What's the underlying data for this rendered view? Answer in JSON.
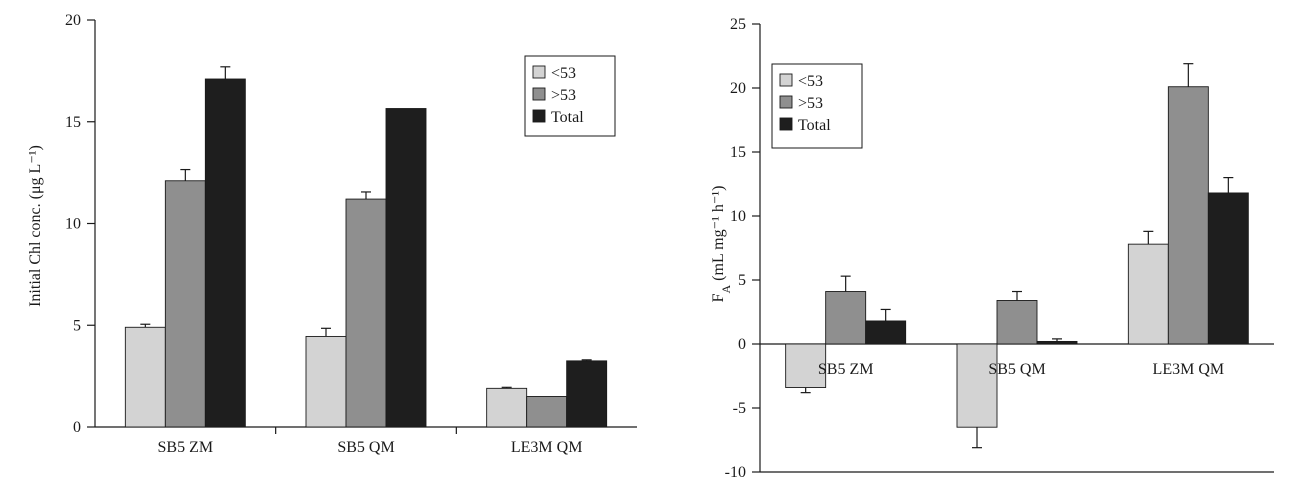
{
  "colors": {
    "lt53": "#d3d3d3",
    "gt53": "#8f8f8f",
    "total": "#1e1e1e",
    "axis": "#1a1a1a"
  },
  "legend": {
    "lt53": "<53",
    "gt53": ">53",
    "total": "Total"
  },
  "chart_data": [
    {
      "type": "bar",
      "categories": [
        "SB5 ZM",
        "SB5 QM",
        "LE3M QM"
      ],
      "ylabel": "Initial Chl conc. (μg L⁻¹)",
      "ylim": [
        0,
        20
      ],
      "yticks": [
        0,
        5,
        10,
        15,
        20
      ],
      "legend_position": "top-right",
      "series": [
        {
          "name": "<53",
          "values": [
            4.9,
            4.45,
            1.9
          ],
          "errors": [
            0.15,
            0.4,
            0.05
          ]
        },
        {
          "name": ">53",
          "values": [
            12.1,
            11.2,
            1.5
          ],
          "errors": [
            0.55,
            0.35,
            null
          ]
        },
        {
          "name": "Total",
          "values": [
            17.1,
            15.65,
            3.25
          ],
          "errors": [
            0.6,
            null,
            0.05
          ]
        }
      ]
    },
    {
      "type": "bar",
      "categories": [
        "SB5 ZM",
        "SB5 QM",
        "LE3M QM"
      ],
      "ylabel": "F",
      "ylabel_sub": "A",
      "ylabel_rest": " (mL mg⁻¹ h⁻¹)",
      "ylim": [
        -10,
        25
      ],
      "yticks": [
        -10,
        -5,
        0,
        5,
        10,
        15,
        20,
        25
      ],
      "legend_position": "top-left",
      "series": [
        {
          "name": "<53",
          "values": [
            -3.4,
            -6.5,
            7.8
          ],
          "errors": [
            0.4,
            1.6,
            1.0
          ]
        },
        {
          "name": ">53",
          "values": [
            4.1,
            3.4,
            20.1
          ],
          "errors": [
            1.2,
            0.7,
            1.8
          ]
        },
        {
          "name": "Total",
          "values": [
            1.8,
            0.2,
            11.8
          ],
          "errors": [
            0.9,
            0.2,
            1.2
          ]
        }
      ]
    }
  ]
}
